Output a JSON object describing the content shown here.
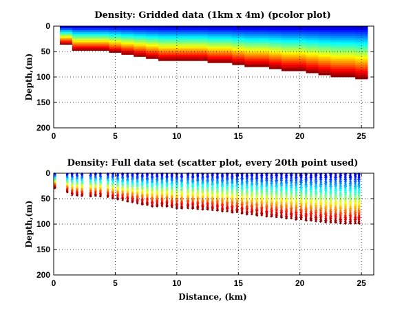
{
  "chart_data": [
    {
      "type": "heatmap",
      "title": "Density: Gridded data (1km x 4m) (pcolor plot)",
      "xlabel": "",
      "ylabel": "Depth,(m)",
      "xlim": [
        0,
        26
      ],
      "ylim": [
        0,
        200
      ],
      "y_reversed": true,
      "xticks": [
        0,
        5,
        10,
        15,
        20,
        25
      ],
      "yticks": [
        0,
        50,
        100,
        150,
        200
      ],
      "grid": true,
      "colormap": "jet",
      "cell_width_km": 1,
      "cell_height_m": 4,
      "columns": [
        {
          "x0": 0.5,
          "x1": 1.5,
          "bottom": 36
        },
        {
          "x0": 1.5,
          "x1": 2.5,
          "bottom": 48
        },
        {
          "x0": 2.5,
          "x1": 3.5,
          "bottom": 48
        },
        {
          "x0": 3.5,
          "x1": 4.5,
          "bottom": 48
        },
        {
          "x0": 4.5,
          "x1": 5.5,
          "bottom": 52
        },
        {
          "x0": 5.5,
          "x1": 6.5,
          "bottom": 56
        },
        {
          "x0": 6.5,
          "x1": 7.5,
          "bottom": 60
        },
        {
          "x0": 7.5,
          "x1": 8.5,
          "bottom": 64
        },
        {
          "x0": 8.5,
          "x1": 9.5,
          "bottom": 68
        },
        {
          "x0": 9.5,
          "x1": 10.5,
          "bottom": 68
        },
        {
          "x0": 10.5,
          "x1": 11.5,
          "bottom": 68
        },
        {
          "x0": 11.5,
          "x1": 12.5,
          "bottom": 68
        },
        {
          "x0": 12.5,
          "x1": 13.5,
          "bottom": 72
        },
        {
          "x0": 13.5,
          "x1": 14.5,
          "bottom": 72
        },
        {
          "x0": 14.5,
          "x1": 15.5,
          "bottom": 76
        },
        {
          "x0": 15.5,
          "x1": 16.5,
          "bottom": 80
        },
        {
          "x0": 16.5,
          "x1": 17.5,
          "bottom": 80
        },
        {
          "x0": 17.5,
          "x1": 18.5,
          "bottom": 84
        },
        {
          "x0": 18.5,
          "x1": 19.5,
          "bottom": 88
        },
        {
          "x0": 19.5,
          "x1": 20.5,
          "bottom": 88
        },
        {
          "x0": 20.5,
          "x1": 21.5,
          "bottom": 92
        },
        {
          "x0": 21.5,
          "x1": 22.5,
          "bottom": 96
        },
        {
          "x0": 22.5,
          "x1": 23.5,
          "bottom": 100
        },
        {
          "x0": 23.5,
          "x1": 24.5,
          "bottom": 100
        },
        {
          "x0": 24.5,
          "x1": 25.5,
          "bottom": 104
        }
      ]
    },
    {
      "type": "scatter",
      "title": "Density: Full data set (scatter plot, every 20th point used)",
      "xlabel": "Distance, (km)",
      "ylabel": "Depth,(m)",
      "xlim": [
        0,
        26
      ],
      "ylim": [
        0,
        200
      ],
      "y_reversed": true,
      "xticks": [
        0,
        5,
        10,
        15,
        20,
        25
      ],
      "yticks": [
        0,
        50,
        100,
        150,
        200
      ],
      "grid": true,
      "colormap": "jet",
      "profiles": [
        {
          "x": 0.1,
          "depth": 30
        },
        {
          "x": 1.1,
          "depth": 38
        },
        {
          "x": 1.5,
          "depth": 44
        },
        {
          "x": 1.9,
          "depth": 44
        },
        {
          "x": 2.3,
          "depth": 46
        },
        {
          "x": 3.0,
          "depth": 46
        },
        {
          "x": 3.4,
          "depth": 46
        },
        {
          "x": 3.8,
          "depth": 46
        },
        {
          "x": 4.4,
          "depth": 48
        },
        {
          "x": 4.8,
          "depth": 50
        },
        {
          "x": 5.2,
          "depth": 52
        },
        {
          "x": 5.6,
          "depth": 54
        },
        {
          "x": 6.0,
          "depth": 56
        },
        {
          "x": 6.4,
          "depth": 58
        },
        {
          "x": 6.8,
          "depth": 60
        },
        {
          "x": 7.2,
          "depth": 62
        },
        {
          "x": 7.6,
          "depth": 64
        },
        {
          "x": 8.0,
          "depth": 66
        },
        {
          "x": 8.4,
          "depth": 66
        },
        {
          "x": 8.8,
          "depth": 66
        },
        {
          "x": 9.2,
          "depth": 66
        },
        {
          "x": 9.6,
          "depth": 68
        },
        {
          "x": 10.0,
          "depth": 70
        },
        {
          "x": 10.4,
          "depth": 70
        },
        {
          "x": 10.9,
          "depth": 70
        },
        {
          "x": 11.3,
          "depth": 70
        },
        {
          "x": 11.7,
          "depth": 72
        },
        {
          "x": 12.1,
          "depth": 72
        },
        {
          "x": 12.5,
          "depth": 72
        },
        {
          "x": 12.9,
          "depth": 74
        },
        {
          "x": 13.3,
          "depth": 74
        },
        {
          "x": 13.7,
          "depth": 76
        },
        {
          "x": 14.1,
          "depth": 76
        },
        {
          "x": 14.5,
          "depth": 78
        },
        {
          "x": 14.9,
          "depth": 78
        },
        {
          "x": 15.3,
          "depth": 80
        },
        {
          "x": 15.7,
          "depth": 82
        },
        {
          "x": 16.1,
          "depth": 82
        },
        {
          "x": 16.5,
          "depth": 84
        },
        {
          "x": 16.9,
          "depth": 84
        },
        {
          "x": 17.3,
          "depth": 86
        },
        {
          "x": 17.7,
          "depth": 86
        },
        {
          "x": 18.1,
          "depth": 88
        },
        {
          "x": 18.5,
          "depth": 88
        },
        {
          "x": 18.9,
          "depth": 90
        },
        {
          "x": 19.3,
          "depth": 90
        },
        {
          "x": 19.7,
          "depth": 92
        },
        {
          "x": 20.1,
          "depth": 92
        },
        {
          "x": 20.5,
          "depth": 94
        },
        {
          "x": 20.9,
          "depth": 94
        },
        {
          "x": 21.3,
          "depth": 96
        },
        {
          "x": 21.7,
          "depth": 96
        },
        {
          "x": 22.1,
          "depth": 98
        },
        {
          "x": 22.5,
          "depth": 98
        },
        {
          "x": 22.9,
          "depth": 98
        },
        {
          "x": 23.3,
          "depth": 100
        },
        {
          "x": 23.7,
          "depth": 100
        },
        {
          "x": 24.1,
          "depth": 100
        },
        {
          "x": 24.5,
          "depth": 100
        },
        {
          "x": 24.8,
          "depth": 100
        }
      ]
    }
  ]
}
